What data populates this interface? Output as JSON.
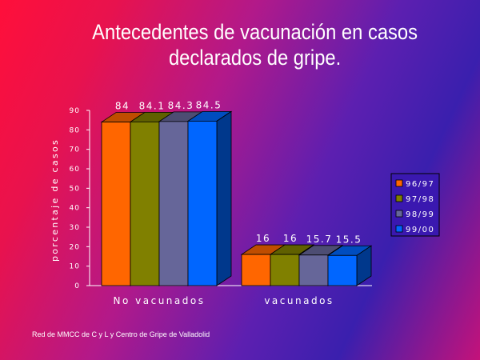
{
  "slide": {
    "title_line1": "Antecedentes de vacunación en casos",
    "title_line2": "declarados de gripe.",
    "source_note": "Red de MMCC de C y L y Centro de Gripe de Valladolid"
  },
  "chart_data": {
    "type": "bar",
    "title": "",
    "ylabel": "porcentaje de casos",
    "xlabel": "",
    "categories": [
      "No vacunados",
      "vacunados"
    ],
    "ylim": [
      0,
      90
    ],
    "yticks": [
      0,
      10,
      20,
      30,
      40,
      50,
      60,
      70,
      80,
      90
    ],
    "series": [
      {
        "name": "96/97",
        "values": [
          84,
          16
        ],
        "labels": [
          "84",
          "16"
        ],
        "color": "#ff6600"
      },
      {
        "name": "97/98",
        "values": [
          84.1,
          16
        ],
        "labels": [
          "84.1",
          "16"
        ],
        "color": "#808000"
      },
      {
        "name": "98/99",
        "values": [
          84.3,
          15.7
        ],
        "labels": [
          "84.3",
          "15.7"
        ],
        "color": "#666699"
      },
      {
        "name": "99/00",
        "values": [
          84.5,
          15.5
        ],
        "labels": [
          "84.5",
          "15.5"
        ],
        "color": "#0066ff"
      }
    ],
    "grid": false,
    "legend_position": "right",
    "style": "3d-bars"
  }
}
